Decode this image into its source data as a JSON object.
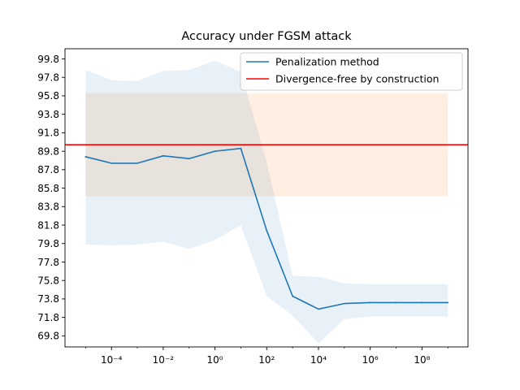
{
  "chart_data": {
    "type": "line",
    "title": "Accuracy under FGSM attack",
    "xlabel": "",
    "ylabel": "",
    "x_scale": "log",
    "x": [
      1e-05,
      0.0001,
      0.001,
      0.01,
      0.1,
      1,
      10,
      100,
      1000,
      10000,
      100000,
      1000000,
      10000000,
      100000000,
      1000000000
    ],
    "xlim": [
      1.6e-06,
      6000000000.0
    ],
    "ylim": [
      68.6,
      100.9
    ],
    "x_ticks": [
      0.0001,
      0.01,
      1,
      100,
      10000,
      1000000,
      100000000
    ],
    "x_tick_labels": [
      "10⁻⁴",
      "10⁻²",
      "10⁰",
      "10²",
      "10⁴",
      "10⁶",
      "10⁸"
    ],
    "y_ticks": [
      69.8,
      71.8,
      73.8,
      75.8,
      77.8,
      79.8,
      81.8,
      83.8,
      85.8,
      87.8,
      89.8,
      91.8,
      93.8,
      95.8,
      97.8,
      99.8
    ],
    "y_tick_labels": [
      "69.8",
      "71.8",
      "73.8",
      "75.8",
      "77.8",
      "79.8",
      "81.8",
      "83.8",
      "85.8",
      "87.8",
      "89.8",
      "91.8",
      "93.8",
      "95.8",
      "97.8",
      "99.8"
    ],
    "grid": false,
    "legend_position": "top-right",
    "series": [
      {
        "name": "Penalization method",
        "kind": "line",
        "color": "#1f77b4",
        "band_color": "#1f77b4",
        "band_opacity": 0.1,
        "values": [
          89.2,
          88.5,
          88.5,
          89.3,
          89.0,
          89.8,
          90.1,
          81.2,
          74.1,
          72.7,
          73.3,
          73.4,
          73.4,
          73.4,
          73.4
        ],
        "band_upper": [
          98.6,
          97.5,
          97.4,
          98.5,
          98.6,
          99.6,
          98.4,
          88.6,
          76.3,
          76.2,
          75.5,
          75.4,
          75.4,
          75.4,
          75.4
        ],
        "band_lower": [
          79.7,
          79.6,
          79.7,
          80.0,
          79.2,
          80.2,
          81.8,
          74.1,
          72.0,
          69.0,
          71.6,
          71.9,
          71.9,
          71.9,
          71.9
        ]
      },
      {
        "name": "Divergence-free by construction",
        "kind": "hline",
        "color": "#d62728",
        "line_color": "#ff0000",
        "value": 90.5,
        "band_upper": 96.1,
        "band_lower": 84.9,
        "band_x_start": 1e-05,
        "band_x_end": 1000000000,
        "band_color": "#ff7f0e",
        "band_opacity": 0.12
      }
    ]
  }
}
